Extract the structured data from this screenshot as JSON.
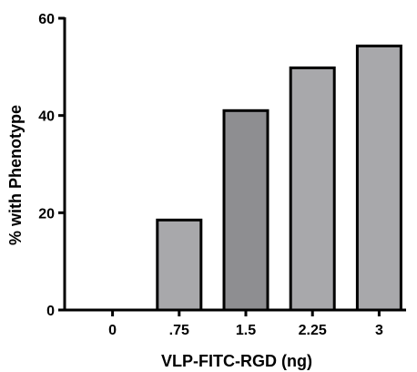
{
  "chart_data": {
    "type": "bar",
    "title": "",
    "xlabel": "VLP-FITC-RGD (ng)",
    "ylabel": "% with Phenotype",
    "categories": [
      "0",
      ".75",
      "1.5",
      "2.25",
      "3"
    ],
    "values": [
      0,
      18.5,
      41,
      49.8,
      54.3
    ],
    "ylim": [
      0,
      60
    ],
    "yticks": [
      0,
      20,
      40,
      60
    ],
    "grid": false,
    "legend": "none",
    "bar_colors": [
      "#a8a8ab",
      "#a8a8ab",
      "#8e8e91",
      "#a8a8ab",
      "#a8a8ab"
    ],
    "bar_edge_color": "#000000"
  }
}
